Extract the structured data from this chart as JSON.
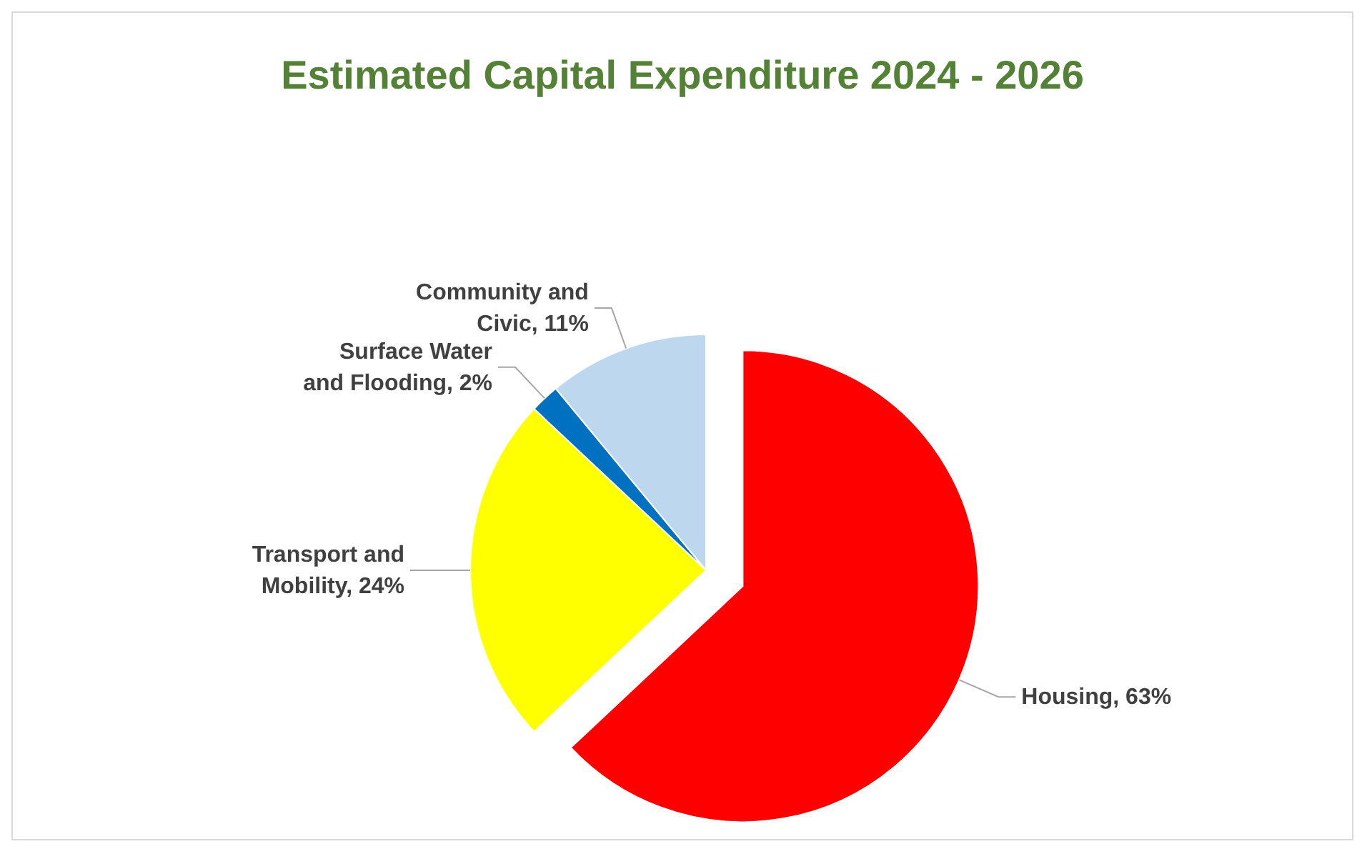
{
  "chart_data": {
    "type": "pie",
    "title": "Estimated Capital Expenditure 2024 - 2026",
    "categories": [
      "Housing",
      "Transport and Mobility",
      "Surface Water and Flooding",
      "Community and Civic"
    ],
    "values": [
      63,
      24,
      2,
      11
    ],
    "value_labels": [
      "63%",
      "24%",
      "2%",
      "11%"
    ],
    "colors": [
      "#ff0000",
      "#ffff00",
      "#0070c0",
      "#bdd7ee"
    ],
    "legend": false
  }
}
